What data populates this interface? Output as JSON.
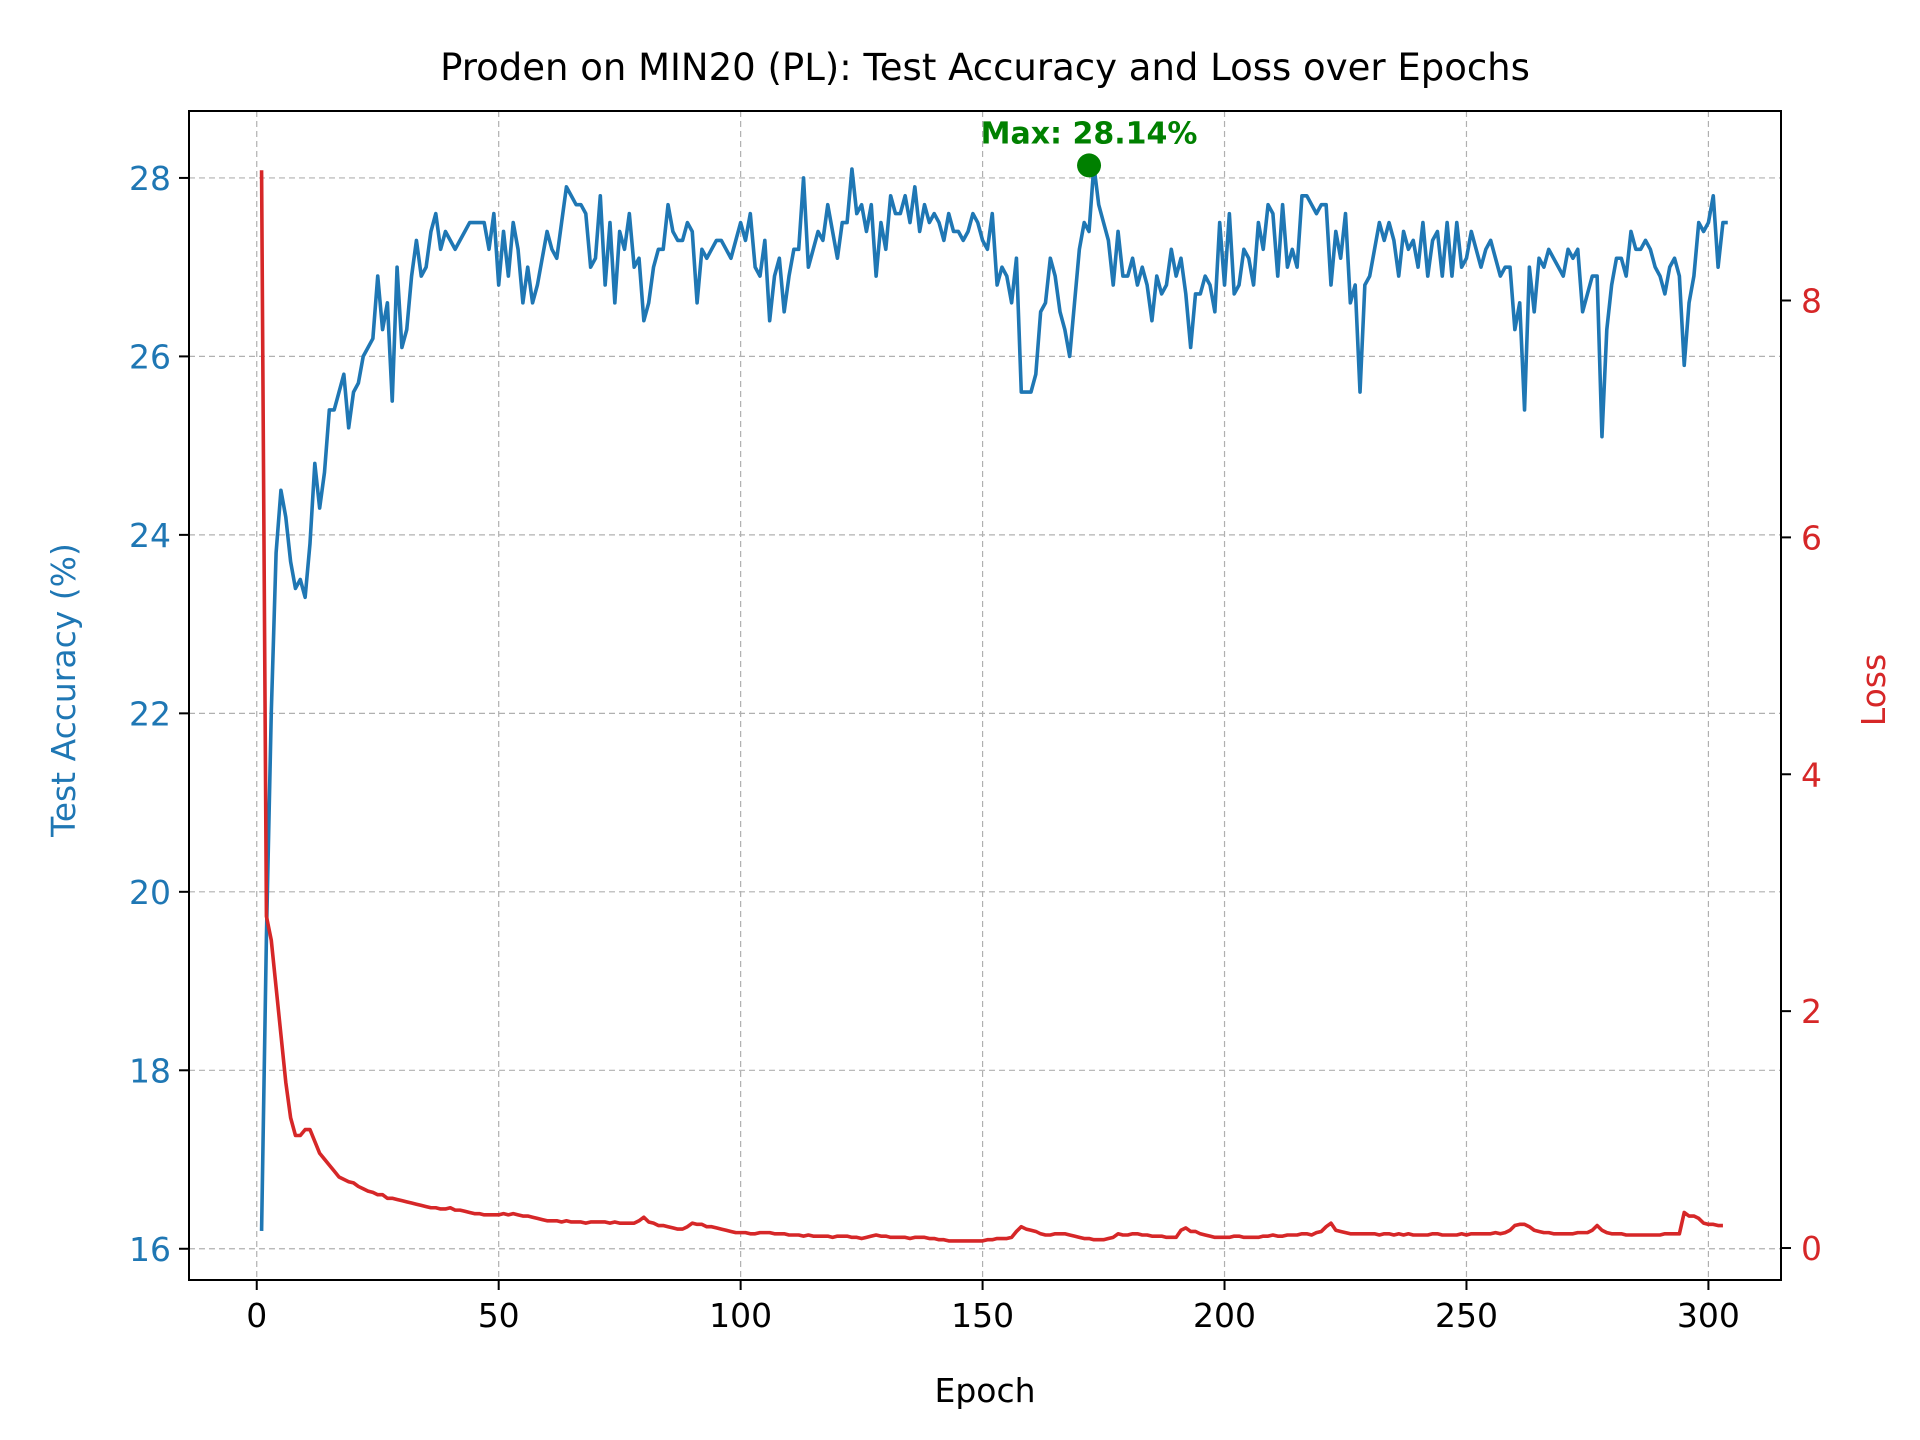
{
  "chart_data": {
    "type": "line",
    "title": "Proden on MIN20 (PL): Test Accuracy and Loss over Epochs",
    "xlabel": "Epoch",
    "ylabel_left": "Test Accuracy (%)",
    "ylabel_right": "Loss",
    "xlim": [
      -14,
      315
    ],
    "ylim_left": [
      15.65,
      28.75
    ],
    "ylim_right": [
      -0.27,
      9.6
    ],
    "xticks": [
      0,
      50,
      100,
      150,
      200,
      250,
      300
    ],
    "yticks_left": [
      16,
      18,
      20,
      22,
      24,
      26,
      28
    ],
    "yticks_right": [
      0,
      2,
      4,
      6,
      8
    ],
    "grid": true,
    "annotation": {
      "text": "Max: 28.14%",
      "x": 172,
      "y": 28.14,
      "color": "#008000"
    },
    "colors": {
      "accuracy": "#1f77b4",
      "loss": "#d62728",
      "max": "#008000"
    },
    "series": [
      {
        "name": "Test Accuracy",
        "axis": "left",
        "x_start": 1,
        "values": [
          16.2,
          19.5,
          22.0,
          23.8,
          24.5,
          24.2,
          23.7,
          23.4,
          23.5,
          23.3,
          23.9,
          24.8,
          24.3,
          24.7,
          25.4,
          25.4,
          25.6,
          25.8,
          25.2,
          25.6,
          25.7,
          26.0,
          26.1,
          26.2,
          26.9,
          26.3,
          26.6,
          25.5,
          27.0,
          26.1,
          26.3,
          26.9,
          27.3,
          26.9,
          27.0,
          27.4,
          27.6,
          27.2,
          27.4,
          27.3,
          27.2,
          27.3,
          27.4,
          27.5,
          27.5,
          27.5,
          27.5,
          27.2,
          27.6,
          26.8,
          27.4,
          26.9,
          27.5,
          27.2,
          26.6,
          27.0,
          26.6,
          26.8,
          27.1,
          27.4,
          27.2,
          27.1,
          27.5,
          27.9,
          27.8,
          27.7,
          27.7,
          27.6,
          27.0,
          27.1,
          27.8,
          26.8,
          27.5,
          26.6,
          27.4,
          27.2,
          27.6,
          27.0,
          27.1,
          26.4,
          26.6,
          27.0,
          27.2,
          27.2,
          27.7,
          27.4,
          27.3,
          27.3,
          27.5,
          27.4,
          26.6,
          27.2,
          27.1,
          27.2,
          27.3,
          27.3,
          27.2,
          27.1,
          27.3,
          27.5,
          27.3,
          27.6,
          27.0,
          26.9,
          27.3,
          26.4,
          26.9,
          27.1,
          26.5,
          26.9,
          27.2,
          27.2,
          28.0,
          27.0,
          27.2,
          27.4,
          27.3,
          27.7,
          27.4,
          27.1,
          27.5,
          27.5,
          28.1,
          27.6,
          27.7,
          27.4,
          27.7,
          26.9,
          27.5,
          27.2,
          27.8,
          27.6,
          27.6,
          27.8,
          27.5,
          27.9,
          27.4,
          27.7,
          27.5,
          27.6,
          27.5,
          27.3,
          27.6,
          27.4,
          27.4,
          27.3,
          27.4,
          27.6,
          27.5,
          27.3,
          27.2,
          27.6,
          26.8,
          27.0,
          26.9,
          26.6,
          27.1,
          25.6,
          25.6,
          25.6,
          25.8,
          26.5,
          26.6,
          27.1,
          26.9,
          26.5,
          26.3,
          26.0,
          26.6,
          27.2,
          27.5,
          27.4,
          28.14,
          27.7,
          27.5,
          27.3,
          26.8,
          27.4,
          26.9,
          26.9,
          27.1,
          26.8,
          27.0,
          26.8,
          26.4,
          26.9,
          26.7,
          26.8,
          27.2,
          26.9,
          27.1,
          26.7,
          26.1,
          26.7,
          26.7,
          26.9,
          26.8,
          26.5,
          27.5,
          26.8,
          27.6,
          26.7,
          26.8,
          27.2,
          27.1,
          26.8,
          27.5,
          27.2,
          27.7,
          27.6,
          26.9,
          27.7,
          27.0,
          27.2,
          27.0,
          27.8,
          27.8,
          27.7,
          27.6,
          27.7,
          27.7,
          26.8,
          27.4,
          27.1,
          27.6,
          26.6,
          26.8,
          25.6,
          26.8,
          26.9,
          27.2,
          27.5,
          27.3,
          27.5,
          27.3,
          26.9,
          27.4,
          27.2,
          27.3,
          27.0,
          27.5,
          26.9,
          27.3,
          27.4,
          26.9,
          27.5,
          26.9,
          27.5,
          27.0,
          27.1,
          27.4,
          27.2,
          27.0,
          27.2,
          27.3,
          27.1,
          26.9,
          27.0,
          27.0,
          26.3,
          26.6,
          25.4,
          27.0,
          26.5,
          27.1,
          27.0,
          27.2,
          27.1,
          27.0,
          26.9,
          27.2,
          27.1,
          27.2,
          26.5,
          26.7,
          26.9,
          26.9,
          25.1,
          26.3,
          26.8,
          27.1,
          27.1,
          26.9,
          27.4,
          27.2,
          27.2,
          27.3,
          27.2,
          27.0,
          26.9,
          26.7,
          27.0,
          27.1,
          26.9,
          25.9,
          26.6,
          26.9,
          27.5,
          27.4,
          27.5,
          27.8,
          27.0,
          27.5,
          27.5
        ]
      },
      {
        "name": "Loss",
        "axis": "right",
        "x_start": 1,
        "values": [
          9.1,
          2.8,
          2.6,
          2.2,
          1.8,
          1.4,
          1.1,
          0.95,
          0.95,
          1.0,
          1.0,
          0.9,
          0.8,
          0.75,
          0.7,
          0.65,
          0.6,
          0.58,
          0.56,
          0.55,
          0.52,
          0.5,
          0.48,
          0.47,
          0.45,
          0.45,
          0.42,
          0.42,
          0.41,
          0.4,
          0.39,
          0.38,
          0.37,
          0.36,
          0.35,
          0.34,
          0.34,
          0.33,
          0.33,
          0.34,
          0.32,
          0.32,
          0.31,
          0.3,
          0.29,
          0.29,
          0.28,
          0.28,
          0.28,
          0.28,
          0.29,
          0.28,
          0.29,
          0.28,
          0.27,
          0.27,
          0.26,
          0.25,
          0.24,
          0.23,
          0.23,
          0.23,
          0.22,
          0.23,
          0.22,
          0.22,
          0.22,
          0.21,
          0.22,
          0.22,
          0.22,
          0.22,
          0.21,
          0.22,
          0.21,
          0.21,
          0.21,
          0.21,
          0.23,
          0.26,
          0.22,
          0.21,
          0.19,
          0.19,
          0.18,
          0.17,
          0.16,
          0.16,
          0.18,
          0.21,
          0.2,
          0.2,
          0.18,
          0.18,
          0.17,
          0.16,
          0.15,
          0.14,
          0.13,
          0.13,
          0.13,
          0.12,
          0.12,
          0.13,
          0.13,
          0.13,
          0.12,
          0.12,
          0.12,
          0.11,
          0.11,
          0.11,
          0.1,
          0.11,
          0.1,
          0.1,
          0.1,
          0.1,
          0.09,
          0.1,
          0.1,
          0.1,
          0.09,
          0.09,
          0.08,
          0.09,
          0.1,
          0.11,
          0.1,
          0.1,
          0.09,
          0.09,
          0.09,
          0.09,
          0.08,
          0.09,
          0.09,
          0.09,
          0.08,
          0.08,
          0.07,
          0.07,
          0.06,
          0.06,
          0.06,
          0.06,
          0.06,
          0.06,
          0.06,
          0.06,
          0.07,
          0.07,
          0.08,
          0.08,
          0.08,
          0.09,
          0.14,
          0.18,
          0.16,
          0.15,
          0.14,
          0.12,
          0.11,
          0.11,
          0.12,
          0.12,
          0.12,
          0.11,
          0.1,
          0.09,
          0.08,
          0.08,
          0.07,
          0.07,
          0.07,
          0.08,
          0.09,
          0.12,
          0.11,
          0.11,
          0.12,
          0.12,
          0.11,
          0.11,
          0.1,
          0.1,
          0.1,
          0.09,
          0.09,
          0.09,
          0.15,
          0.17,
          0.14,
          0.14,
          0.12,
          0.11,
          0.1,
          0.09,
          0.09,
          0.09,
          0.09,
          0.1,
          0.1,
          0.09,
          0.09,
          0.09,
          0.09,
          0.1,
          0.1,
          0.11,
          0.1,
          0.1,
          0.11,
          0.11,
          0.11,
          0.12,
          0.12,
          0.11,
          0.13,
          0.14,
          0.18,
          0.21,
          0.15,
          0.14,
          0.13,
          0.12,
          0.12,
          0.12,
          0.12,
          0.12,
          0.12,
          0.11,
          0.12,
          0.12,
          0.11,
          0.12,
          0.11,
          0.12,
          0.11,
          0.11,
          0.11,
          0.11,
          0.12,
          0.12,
          0.11,
          0.11,
          0.11,
          0.11,
          0.12,
          0.11,
          0.12,
          0.12,
          0.12,
          0.12,
          0.12,
          0.13,
          0.12,
          0.13,
          0.15,
          0.19,
          0.2,
          0.2,
          0.18,
          0.15,
          0.14,
          0.13,
          0.13,
          0.12,
          0.12,
          0.12,
          0.12,
          0.12,
          0.13,
          0.13,
          0.13,
          0.15,
          0.19,
          0.15,
          0.13,
          0.12,
          0.12,
          0.12,
          0.11,
          0.11,
          0.11,
          0.11,
          0.11,
          0.11,
          0.11,
          0.11,
          0.12,
          0.12,
          0.12,
          0.12,
          0.3,
          0.27,
          0.27,
          0.25,
          0.21,
          0.2,
          0.2,
          0.19,
          0.19
        ]
      }
    ]
  }
}
